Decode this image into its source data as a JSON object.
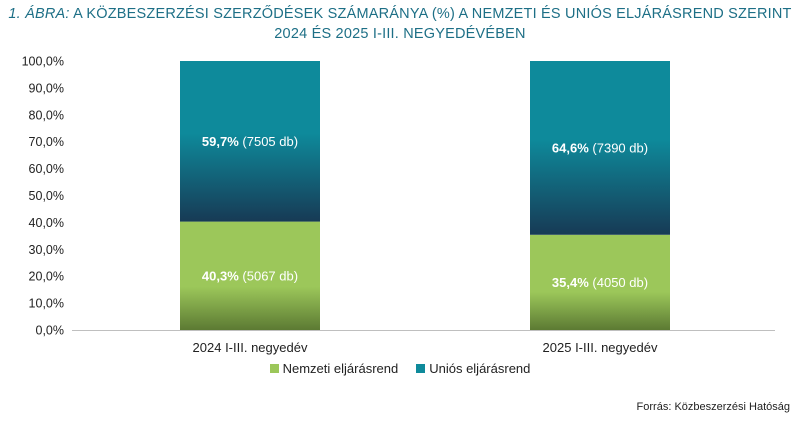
{
  "title": {
    "prefix": "1. ÁBRA:",
    "line1": "A KÖZBESZERZÉSI SZERZŐDÉSEK SZÁMARÁNYA (%) A NEMZETI ÉS UNIÓS ELJÁRÁSREND SZERINT",
    "line2": "2024 ÉS 2025 I-III. NEGYEDÉVÉBEN"
  },
  "source": "Forrás: Közbeszerzési Hatóság",
  "colors": {
    "nemzeti_top": "#9cc75a",
    "nemzeti_bottom": "#5c7a33",
    "unios_top": "#0e8a9b",
    "unios_bottom": "#173a55",
    "title": "#1d6f86"
  },
  "chart_data": {
    "type": "bar",
    "stacked": true,
    "categories": [
      "2024 I-III. negyedév",
      "2025 I-III. negyedév"
    ],
    "series": [
      {
        "name": "Nemzeti eljárásrend",
        "values": [
          40.3,
          35.4
        ],
        "labels": [
          {
            "pct": "40,3%",
            "count": "(5067 db)"
          },
          {
            "pct": "35,4%",
            "count": "(4050 db)"
          }
        ]
      },
      {
        "name": "Uniós eljárásrend",
        "values": [
          59.7,
          64.6
        ],
        "labels": [
          {
            "pct": "59,7%",
            "count": "(7505 db)"
          },
          {
            "pct": "64,6%",
            "count": "(7390 db)"
          }
        ]
      }
    ],
    "ylim": [
      0,
      100
    ],
    "yticks": [
      "0,0%",
      "10,0%",
      "20,0%",
      "30,0%",
      "40,0%",
      "50,0%",
      "60,0%",
      "70,0%",
      "80,0%",
      "90,0%",
      "100,0%"
    ],
    "legend": "bottom",
    "grid": false
  }
}
